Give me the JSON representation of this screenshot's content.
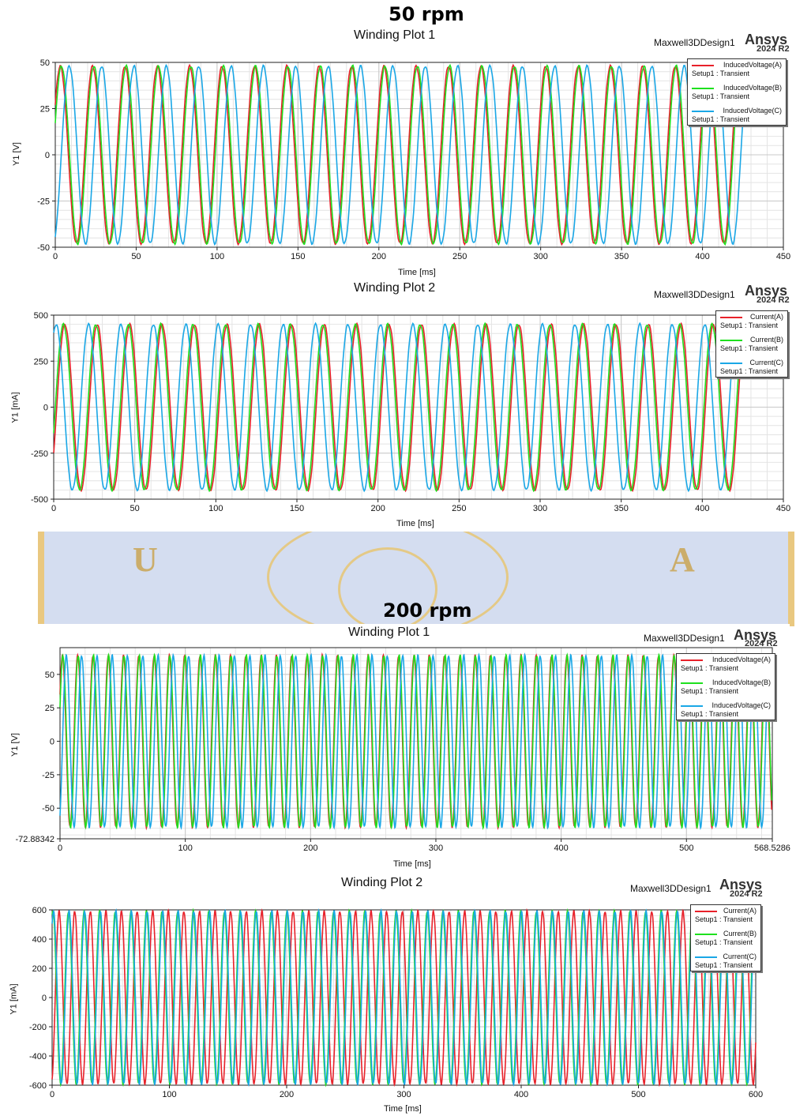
{
  "sections": [
    {
      "title": "50 rpm"
    },
    {
      "title": "200 rpm"
    }
  ],
  "plots": [
    {
      "title": "Winding Plot 1",
      "design": "Maxwell3DDesign1",
      "brand": "Ansys",
      "version": "2024 R2",
      "ylabel": "Y1 [V]",
      "xlabel": "Time [ms]",
      "legend": [
        {
          "name": "InducedVoltage(A)",
          "setup": "Setup1 : Transient",
          "color": "#e8212a"
        },
        {
          "name": "InducedVoltage(B)",
          "setup": "Setup1 : Transient",
          "color": "#1ee01e"
        },
        {
          "name": "InducedVoltage(C)",
          "setup": "Setup1 : Transient",
          "color": "#1aa7e6"
        }
      ]
    },
    {
      "title": "Winding Plot 2",
      "design": "Maxwell3DDesign1",
      "brand": "Ansys",
      "version": "2024 R2",
      "ylabel": "Y1 [mA]",
      "xlabel": "Time [ms]",
      "legend": [
        {
          "name": "Current(A)",
          "setup": "Setup1 : Transient",
          "color": "#e8212a"
        },
        {
          "name": "Current(B)",
          "setup": "Setup1 : Transient",
          "color": "#1ee01e"
        },
        {
          "name": "Current(C)",
          "setup": "Setup1 : Transient",
          "color": "#1aa7e6"
        }
      ]
    },
    {
      "title": "Winding Plot 1",
      "design": "Maxwell3DDesign1",
      "brand": "Ansys",
      "version": "2024 R2",
      "ylabel": "Y1 [V]",
      "xlabel": "Time [ms]",
      "legend": [
        {
          "name": "InducedVoltage(A)",
          "setup": "Setup1 : Transient",
          "color": "#e8212a"
        },
        {
          "name": "InducedVoltage(B)",
          "setup": "Setup1 : Transient",
          "color": "#1ee01e"
        },
        {
          "name": "InducedVoltage(C)",
          "setup": "Setup1 : Transient",
          "color": "#1aa7e6"
        }
      ]
    },
    {
      "title": "Winding Plot 2",
      "design": "Maxwell3DDesign1",
      "brand": "Ansys",
      "version": "2024 R2",
      "ylabel": "Y1 [mA]",
      "xlabel": "Time [ms]",
      "legend": [
        {
          "name": "Current(A)",
          "setup": "Setup1 : Transient",
          "color": "#e8212a"
        },
        {
          "name": "Current(B)",
          "setup": "Setup1 : Transient",
          "color": "#1ee01e"
        },
        {
          "name": "Current(C)",
          "setup": "Setup1 : Transient",
          "color": "#1aa7e6"
        }
      ]
    }
  ],
  "chart_data": [
    {
      "type": "line",
      "title": "Winding Plot 1",
      "xlabel": "Time [ms]",
      "ylabel": "Y1 [V]",
      "xlim": [
        0,
        450
      ],
      "ylim": [
        -50,
        50
      ],
      "xticks": [
        "0",
        "50",
        "100",
        "150",
        "200",
        "250",
        "300",
        "350",
        "400",
        "450"
      ],
      "yticks": [
        "-50",
        "-25",
        "0",
        "25",
        "50"
      ],
      "grid": true,
      "legend_position": "top-right",
      "waveform": {
        "kind": "three-phase sine",
        "amplitude": 48,
        "period_ms": 20,
        "t_end_ms": 425,
        "phase_shift_deg": 120
      },
      "series": [
        {
          "name": "InducedVoltage(A)",
          "color": "#e8212a",
          "initial_value": 27,
          "final_value": -43
        },
        {
          "name": "InducedVoltage(B)",
          "color": "#1ee01e",
          "initial_value": 17,
          "final_value": 2
        },
        {
          "name": "InducedVoltage(C)",
          "color": "#1aa7e6",
          "initial_value": -44,
          "final_value": 41
        }
      ]
    },
    {
      "type": "line",
      "title": "Winding Plot 2",
      "xlabel": "Time [ms]",
      "ylabel": "Y1 [mA]",
      "xlim": [
        0,
        450
      ],
      "ylim": [
        -500,
        500
      ],
      "xticks": [
        "0",
        "50",
        "100",
        "150",
        "200",
        "250",
        "300",
        "350",
        "400",
        "450"
      ],
      "yticks": [
        "-500",
        "-250",
        "0",
        "250",
        "500"
      ],
      "grid": true,
      "legend_position": "top-right",
      "waveform": {
        "kind": "three-phase sine",
        "amplitude": 450,
        "period_ms": 20,
        "t_end_ms": 425,
        "phase_shift_deg": 120
      },
      "series": [
        {
          "name": "Current(A)",
          "color": "#e8212a",
          "initial_value": -250,
          "final_value": 260
        },
        {
          "name": "Current(B)",
          "color": "#1ee01e",
          "initial_value": -140,
          "final_value": -20
        },
        {
          "name": "Current(C)",
          "color": "#1aa7e6",
          "initial_value": 400,
          "final_value": -390
        }
      ]
    },
    {
      "type": "line",
      "title": "Winding Plot 1",
      "xlabel": "Time [ms]",
      "ylabel": "Y1 [V]",
      "xlim": [
        0,
        568.5286
      ],
      "ylim": [
        -72.88342,
        70
      ],
      "xticks": [
        "0",
        "100",
        "200",
        "300",
        "400",
        "500",
        "568.5286"
      ],
      "yticks": [
        "-72.88342",
        "-50",
        "-25",
        "0",
        "25",
        "50"
      ],
      "grid": true,
      "legend_position": "top-right",
      "waveform": {
        "kind": "three-phase sine",
        "amplitude": 64,
        "period_ms": 12.2,
        "t_end_ms": 568,
        "phase_shift_deg": 120
      },
      "series": [
        {
          "name": "InducedVoltage(A)",
          "color": "#e8212a",
          "initial_value": 35
        },
        {
          "name": "InducedVoltage(B)",
          "color": "#1ee01e",
          "initial_value": 25
        },
        {
          "name": "InducedVoltage(C)",
          "color": "#1aa7e6",
          "initial_value": -55
        }
      ]
    },
    {
      "type": "line",
      "title": "Winding Plot 2",
      "xlabel": "Time [ms]",
      "ylabel": "Y1 [mA]",
      "xlim": [
        0,
        600
      ],
      "ylim": [
        -600,
        600
      ],
      "xticks": [
        "0",
        "100",
        "200",
        "300",
        "400",
        "500",
        "600"
      ],
      "yticks": [
        "-600",
        "-400",
        "-200",
        "0",
        "200",
        "400",
        "600"
      ],
      "grid": true,
      "legend_position": "top-right",
      "waveform": {
        "kind": "three-phase sine",
        "amplitude": 590,
        "period_ms": 13.3,
        "t_end_ms": 600,
        "phase_shift_deg": 120
      },
      "series": [
        {
          "name": "Current(A)",
          "color": "#e8212a",
          "initial_value": -560
        },
        {
          "name": "Current(B)",
          "color": "#1ee01e",
          "initial_value": 560
        },
        {
          "name": "Current(C)",
          "color": "#1aa7e6",
          "initial_value": 500
        }
      ]
    }
  ]
}
